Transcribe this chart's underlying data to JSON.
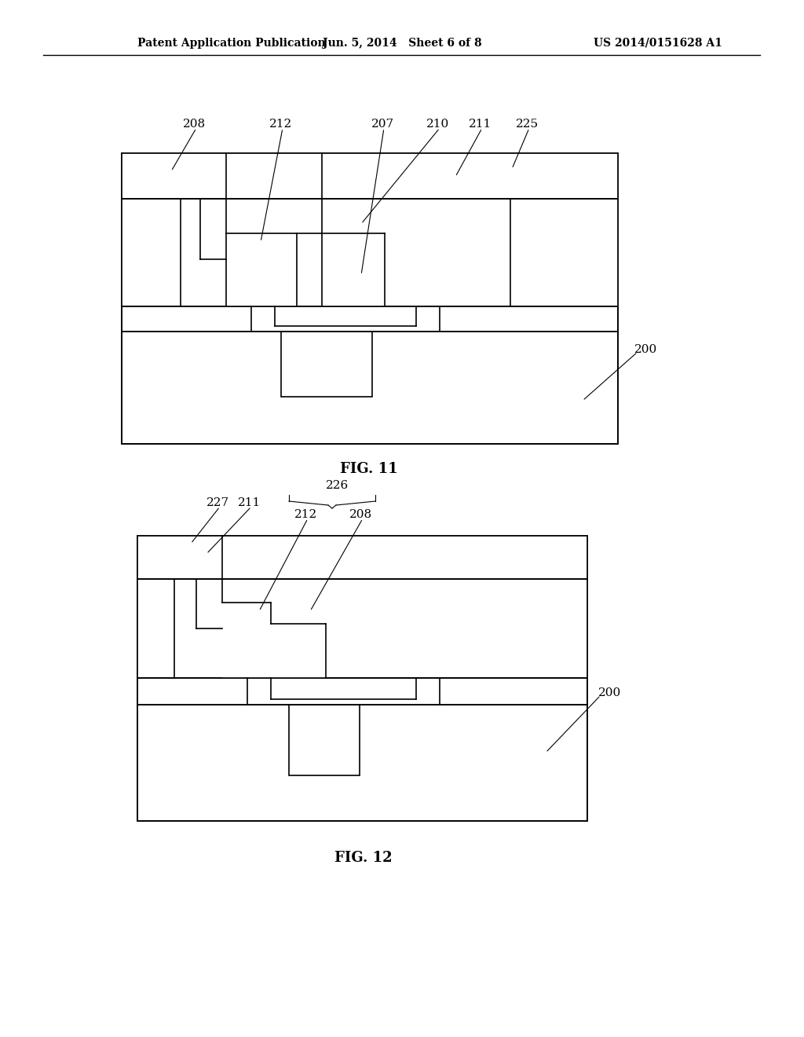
{
  "header_left": "Patent Application Publication",
  "header_mid": "Jun. 5, 2014   Sheet 6 of 8",
  "header_right": "US 2014/0151628 A1",
  "fig11_label": "FIG. 11",
  "fig12_label": "FIG. 12",
  "bg_color": "#ffffff",
  "line_color": "#000000"
}
